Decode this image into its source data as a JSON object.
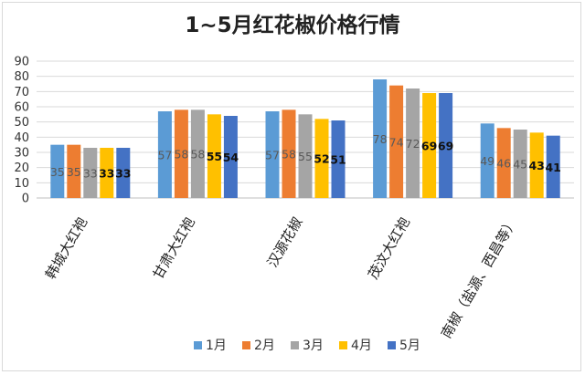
{
  "chart_data": {
    "type": "bar",
    "title": "1~5月红花椒价格行情",
    "xlabel": "",
    "ylabel": "",
    "ylim": [
      0,
      90
    ],
    "yticks": [
      0,
      10,
      20,
      30,
      40,
      50,
      60,
      70,
      80,
      90
    ],
    "grid": true,
    "legend_position": "bottom",
    "categories": [
      "韩城大红袍",
      "甘肃大红袍",
      "汉源花椒",
      "茂汶大红袍",
      "南椒（盐源、西昌等）"
    ],
    "series": [
      {
        "name": "1月",
        "color": "#5b9bd5",
        "values": [
          35,
          57,
          57,
          78,
          49
        ]
      },
      {
        "name": "2月",
        "color": "#ed7d31",
        "values": [
          35,
          58,
          58,
          74,
          46
        ]
      },
      {
        "name": "3月",
        "color": "#a5a5a5",
        "values": [
          33,
          58,
          55,
          72,
          45
        ]
      },
      {
        "name": "4月",
        "color": "#ffc000",
        "values": [
          33,
          55,
          52,
          69,
          43
        ]
      },
      {
        "name": "5月",
        "color": "#4472c4",
        "values": [
          33,
          54,
          51,
          69,
          41
        ]
      }
    ]
  }
}
